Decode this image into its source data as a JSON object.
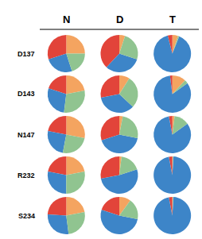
{
  "chart_data": {
    "type": "pie",
    "col_labels": [
      "N",
      "D",
      "T"
    ],
    "row_labels": [
      "D137",
      "D143",
      "N147",
      "R232",
      "S234"
    ],
    "colors": [
      "#f4a460",
      "#e2443a",
      "#3d85c8",
      "#90c490"
    ],
    "cells": [
      [
        [
          25,
          30,
          25,
          20
        ],
        [
          5,
          38,
          32,
          25
        ],
        [
          5,
          4,
          90,
          1
        ]
      ],
      [
        [
          22,
          20,
          28,
          30
        ],
        [
          9,
          28,
          35,
          28
        ],
        [
          12,
          2,
          83,
          3
        ]
      ],
      [
        [
          28,
          22,
          25,
          25
        ],
        [
          3,
          30,
          42,
          25
        ],
        [
          2,
          3,
          82,
          13
        ]
      ],
      [
        [
          22,
          22,
          28,
          28
        ],
        [
          2,
          28,
          52,
          18
        ],
        [
          0.5,
          3,
          96,
          0.5
        ]
      ],
      [
        [
          22,
          24,
          28,
          26
        ],
        [
          10,
          20,
          52,
          18
        ],
        [
          0.5,
          3,
          96,
          0.5
        ]
      ]
    ]
  }
}
